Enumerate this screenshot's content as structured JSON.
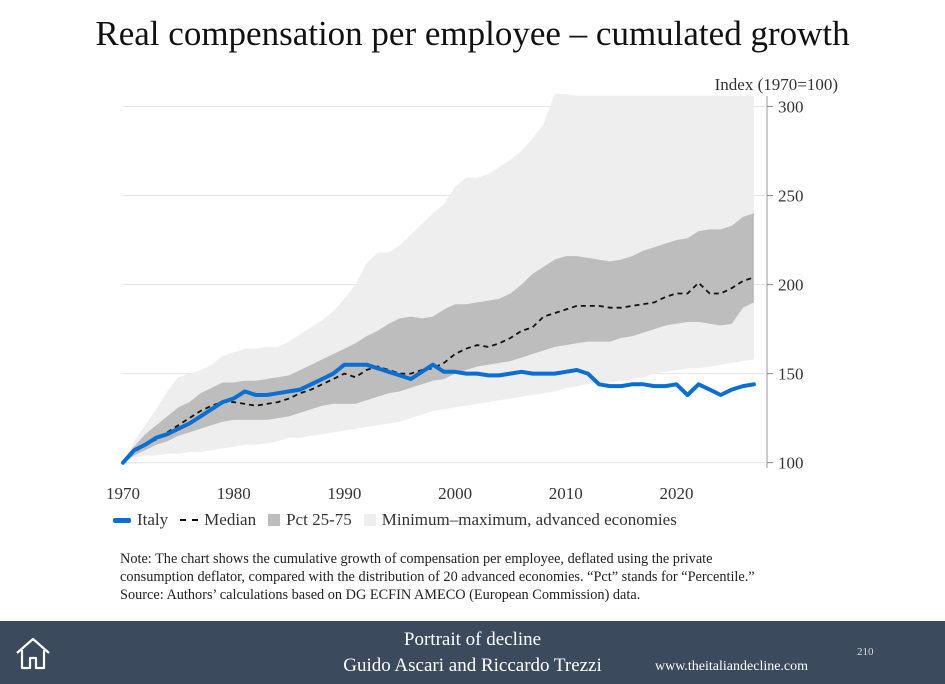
{
  "title": "Real compensation per employee – cumulated growth",
  "chart_data": {
    "type": "line",
    "ylabel": "Index (1970=100)",
    "xlim": [
      1970,
      2028
    ],
    "ylim": [
      97,
      307
    ],
    "x_ticks": [
      "1970",
      "1980",
      "1990",
      "2000",
      "2010",
      "2020"
    ],
    "y_ticks": [
      "100",
      "150",
      "200",
      "250",
      "300"
    ],
    "x": [
      1970,
      1971,
      1972,
      1973,
      1974,
      1975,
      1976,
      1977,
      1978,
      1979,
      1980,
      1981,
      1982,
      1983,
      1984,
      1985,
      1986,
      1987,
      1988,
      1989,
      1990,
      1991,
      1992,
      1993,
      1994,
      1995,
      1996,
      1997,
      1998,
      1999,
      2000,
      2001,
      2002,
      2003,
      2004,
      2005,
      2006,
      2007,
      2008,
      2009,
      2010,
      2011,
      2012,
      2013,
      2014,
      2015,
      2016,
      2017,
      2018,
      2019,
      2020,
      2021,
      2022,
      2023,
      2024,
      2025,
      2026,
      2027
    ],
    "series": [
      {
        "name": "Italy",
        "values": [
          100,
          107,
          110,
          114,
          116,
          119,
          122,
          126,
          130,
          134,
          136,
          140,
          138,
          138,
          139,
          140,
          141,
          144,
          147,
          150,
          155,
          155,
          155,
          153,
          151,
          149,
          147,
          151,
          155,
          151,
          151,
          150,
          150,
          149,
          149,
          150,
          151,
          150,
          150,
          150,
          151,
          152,
          150,
          144,
          143,
          143,
          144,
          144,
          143,
          143,
          144,
          138,
          144,
          141,
          138,
          141,
          143,
          144
        ]
      },
      {
        "name": "Median",
        "values": [
          100,
          106,
          110,
          113,
          117,
          121,
          125,
          129,
          132,
          134,
          134,
          133,
          132,
          133,
          134,
          136,
          139,
          141,
          144,
          147,
          150,
          148,
          152,
          154,
          152,
          150,
          150,
          152,
          153,
          156,
          161,
          164,
          166,
          165,
          167,
          170,
          174,
          176,
          182,
          184,
          186,
          188,
          188,
          188,
          187,
          187,
          188,
          189,
          190,
          193,
          195,
          195,
          201,
          195,
          195,
          198,
          202,
          204
        ]
      },
      {
        "name": "Pct 25-75",
        "lower": [
          100,
          104,
          107,
          110,
          112,
          115,
          117,
          119,
          121,
          123,
          124,
          124,
          124,
          124,
          125,
          126,
          128,
          130,
          132,
          133,
          133,
          133,
          135,
          137,
          139,
          140,
          142,
          144,
          146,
          147,
          150,
          152,
          154,
          155,
          156,
          157,
          159,
          161,
          163,
          165,
          166,
          167,
          168,
          168,
          168,
          170,
          171,
          173,
          175,
          177,
          178,
          179,
          179,
          178,
          177,
          178,
          187,
          190
        ],
        "upper": [
          100,
          109,
          116,
          121,
          126,
          131,
          134,
          139,
          142,
          145,
          145,
          146,
          146,
          147,
          148,
          149,
          152,
          155,
          158,
          161,
          164,
          167,
          171,
          174,
          178,
          181,
          182,
          181,
          182,
          186,
          189,
          189,
          190,
          191,
          192,
          195,
          200,
          206,
          210,
          214,
          216,
          216,
          215,
          214,
          213,
          214,
          216,
          219,
          221,
          223,
          225,
          226,
          230,
          231,
          231,
          233,
          238,
          240
        ]
      },
      {
        "name": "Minimum–maximum, advanced economies",
        "lower": [
          100,
          103,
          104,
          104,
          105,
          105,
          106,
          106,
          107,
          108,
          109,
          110,
          110,
          111,
          112,
          114,
          114,
          115,
          116,
          117,
          118,
          119,
          120,
          121,
          122,
          123,
          125,
          127,
          129,
          130,
          131,
          132,
          133,
          134,
          135,
          136,
          137,
          138,
          139,
          140,
          142,
          143,
          144,
          145,
          145,
          146,
          147,
          148,
          150,
          151,
          152,
          153,
          153,
          154,
          155,
          156,
          157,
          158
        ],
        "upper": [
          100,
          112,
          121,
          130,
          140,
          148,
          150,
          152,
          155,
          160,
          162,
          164,
          164,
          165,
          165,
          168,
          172,
          176,
          180,
          185,
          192,
          200,
          212,
          218,
          218,
          222,
          228,
          234,
          240,
          245,
          255,
          260,
          260,
          262,
          266,
          270,
          275,
          282,
          290,
          310,
          308,
          306,
          306,
          306,
          306,
          306,
          306,
          306,
          306,
          306,
          306,
          306,
          306,
          306,
          306,
          306,
          306,
          306
        ]
      }
    ],
    "legend": [
      "Italy",
      "Median",
      "Pct 25-75",
      "Minimum–maximum, advanced economies"
    ],
    "legend_position": "bottom",
    "colors": {
      "italy": "#0a6fd0",
      "median": "#111111",
      "pct": "#bdbdbd",
      "minmax": "#eeeeee"
    }
  },
  "note": [
    "Note: The chart shows the cumulative growth of compensation per employee, deflated using the private",
    "consumption deflator, compared with the distribution of 20 advanced economies. “Pct” stands for “Percentile.”",
    "Source: Authors’ calculations based on DG ECFIN AMECO (European Commission) data."
  ],
  "footer": {
    "title": "Portrait of decline",
    "authors": "Guido Ascari and Riccardo Trezzi",
    "url": "www.theitaliandecline.com",
    "page": "210",
    "home_icon": "home-icon"
  }
}
